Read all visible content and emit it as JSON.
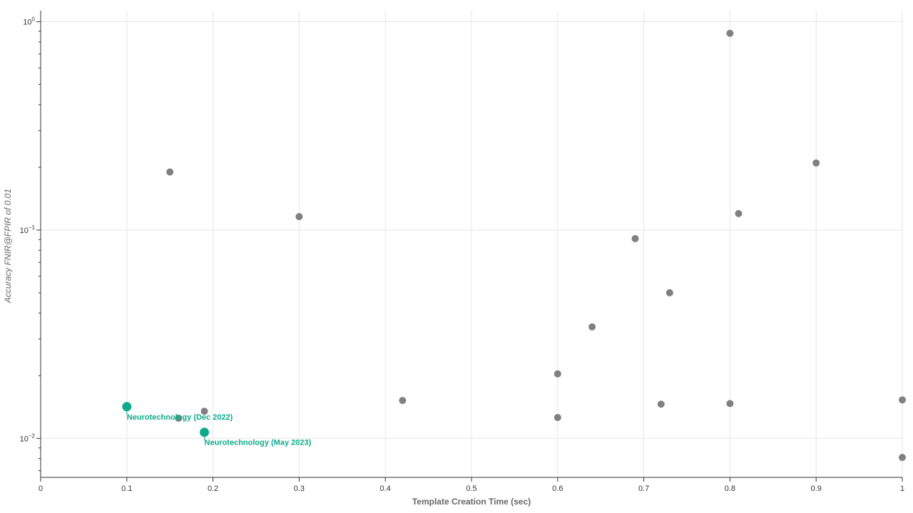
{
  "chart_data": {
    "type": "scatter",
    "title": "",
    "xlabel": "Template Creation Time (sec)",
    "ylabel": "Accuracy FNIR@FPIR of 0.01",
    "xlim": [
      0,
      1
    ],
    "ylim": [
      0.0065,
      1.13
    ],
    "yscale": "log",
    "grid": true,
    "x_ticks": [
      "0",
      "0.1",
      "0.2",
      "0.3",
      "0.4",
      "0.5",
      "0.6",
      "0.7",
      "0.8",
      "0.9",
      "1"
    ],
    "y_ticks": [
      {
        "base": "10",
        "exp": "−2",
        "value": 0.01
      },
      {
        "base": "10",
        "exp": "−1",
        "value": 0.1
      },
      {
        "base": "10",
        "exp": "0",
        "value": 1
      }
    ],
    "colors": {
      "default": "#808080",
      "highlight": "#0faa8b"
    },
    "series": [
      {
        "points": [
          {
            "x": 0.15,
            "y": 0.19
          },
          {
            "x": 0.16,
            "y": 0.0125
          },
          {
            "x": 0.19,
            "y": 0.0135
          },
          {
            "x": 0.3,
            "y": 0.116
          },
          {
            "x": 0.42,
            "y": 0.0152
          },
          {
            "x": 0.6,
            "y": 0.0204
          },
          {
            "x": 0.6,
            "y": 0.0126
          },
          {
            "x": 0.64,
            "y": 0.0343
          },
          {
            "x": 0.69,
            "y": 0.091
          },
          {
            "x": 0.72,
            "y": 0.0146
          },
          {
            "x": 0.73,
            "y": 0.05
          },
          {
            "x": 0.8,
            "y": 0.88
          },
          {
            "x": 0.8,
            "y": 0.0147
          },
          {
            "x": 0.81,
            "y": 0.12
          },
          {
            "x": 0.9,
            "y": 0.21
          },
          {
            "x": 1.0,
            "y": 0.0153
          },
          {
            "x": 1.0,
            "y": 0.0081
          }
        ]
      },
      {
        "highlight": true,
        "points": [
          {
            "x": 0.1,
            "y": 0.0142,
            "label": "Neurotechnology (Dec 2022)"
          },
          {
            "x": 0.19,
            "y": 0.0107,
            "label": "Neurotechnology (May 2023)"
          }
        ]
      }
    ]
  }
}
